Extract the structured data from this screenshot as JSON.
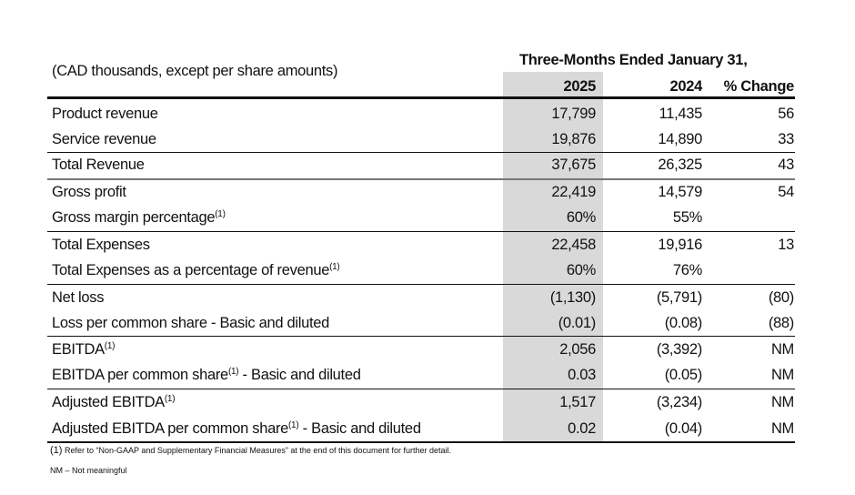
{
  "header": {
    "units_label": "(CAD thousands, except per share amounts)",
    "period_label": "Three-Months Ended January 31,",
    "columns": [
      "2025",
      "2024",
      "% Change"
    ]
  },
  "rows": [
    {
      "label": "Product revenue",
      "sup": "",
      "suffix": "",
      "v2025": "17,799",
      "v2024": "11,435",
      "change": "56"
    },
    {
      "label": "Service revenue",
      "sup": "",
      "suffix": "",
      "v2025": "19,876",
      "v2024": "14,890",
      "change": "33"
    },
    {
      "label": "Total Revenue",
      "sup": "",
      "suffix": "",
      "v2025": "37,675",
      "v2024": "26,325",
      "change": "43"
    },
    {
      "label": "Gross profit",
      "sup": "",
      "suffix": "",
      "v2025": "22,419",
      "v2024": "14,579",
      "change": "54"
    },
    {
      "label": "Gross margin percentage",
      "sup": "(1)",
      "suffix": "",
      "v2025": "60%",
      "v2024": "55%",
      "change": ""
    },
    {
      "label": "Total Expenses",
      "sup": "",
      "suffix": "",
      "v2025": "22,458",
      "v2024": "19,916",
      "change": "13"
    },
    {
      "label": "Total Expenses as a percentage of revenue",
      "sup": "(1)",
      "suffix": "",
      "v2025": "60%",
      "v2024": "76%",
      "change": ""
    },
    {
      "label": "Net loss",
      "sup": "",
      "suffix": "",
      "v2025": "(1,130)",
      "v2024": "(5,791)",
      "change": "(80)"
    },
    {
      "label": "Loss per common share - Basic and diluted",
      "sup": "",
      "suffix": "",
      "v2025": "(0.01)",
      "v2024": "(0.08)",
      "change": "(88)"
    },
    {
      "label": "EBITDA",
      "sup": "(1)",
      "suffix": "",
      "v2025": "2,056",
      "v2024": "(3,392)",
      "change": "NM"
    },
    {
      "label": "EBITDA per common share",
      "sup": "(1)",
      "suffix": " - Basic and diluted",
      "v2025": "0.03",
      "v2024": "(0.05)",
      "change": "NM"
    },
    {
      "label": "Adjusted EBITDA",
      "sup": "(1)",
      "suffix": "",
      "v2025": "1,517",
      "v2024": "(3,234)",
      "change": "NM"
    },
    {
      "label": "Adjusted EBITDA per common share",
      "sup": "(1)",
      "suffix": " - Basic and diluted",
      "v2025": "0.02",
      "v2024": "(0.04)",
      "change": "NM"
    }
  ],
  "footnotes": {
    "note1_marker": "(1)",
    "note1_text": " Refer to “Non-GAAP and Supplementary Financial Measures” at the end of this document for further detail.",
    "nm": "NM – Not meaningful"
  },
  "colors": {
    "highlight_column": "#d9d9d9",
    "rule": "#111111"
  }
}
